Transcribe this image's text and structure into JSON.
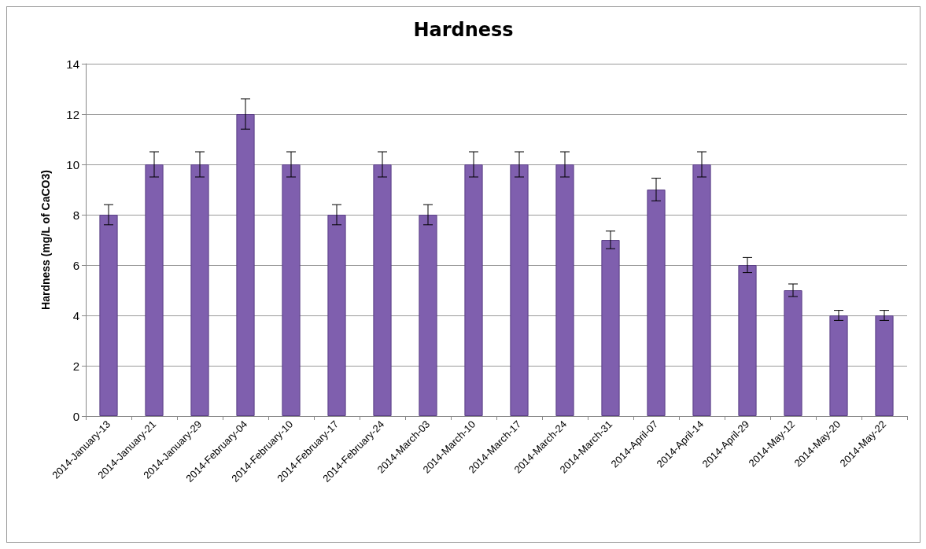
{
  "chart_data": {
    "type": "bar",
    "title": "Hardness",
    "ylabel": "Hardness (mg/L of CaCO3)",
    "categories": [
      "2014-January-13",
      "2014-January-21",
      "2014-January-29",
      "2014-February-04",
      "2014-February-10",
      "2014-February-17",
      "2014-February-24",
      "2014-March-03",
      "2014-March-10",
      "2014-March-17",
      "2014-March-24",
      "2014-March-31",
      "2014-April-07",
      "2014-April-14",
      "2014-April-29",
      "2014-May-12",
      "2014-May-20",
      "2014-May-22"
    ],
    "values": [
      8,
      10,
      10,
      12,
      10,
      8,
      10,
      8,
      10,
      10,
      10,
      7,
      9,
      10,
      6,
      5,
      4,
      4
    ],
    "errors": [
      0.4,
      0.5,
      0.5,
      0.6,
      0.5,
      0.4,
      0.5,
      0.4,
      0.5,
      0.5,
      0.5,
      0.35,
      0.45,
      0.5,
      0.3,
      0.25,
      0.2,
      0.2
    ],
    "color": "#7f5fae",
    "ylim": [
      0,
      14
    ],
    "yticks": [
      0,
      2,
      4,
      6,
      8,
      10,
      12,
      14
    ],
    "grid": "y"
  }
}
